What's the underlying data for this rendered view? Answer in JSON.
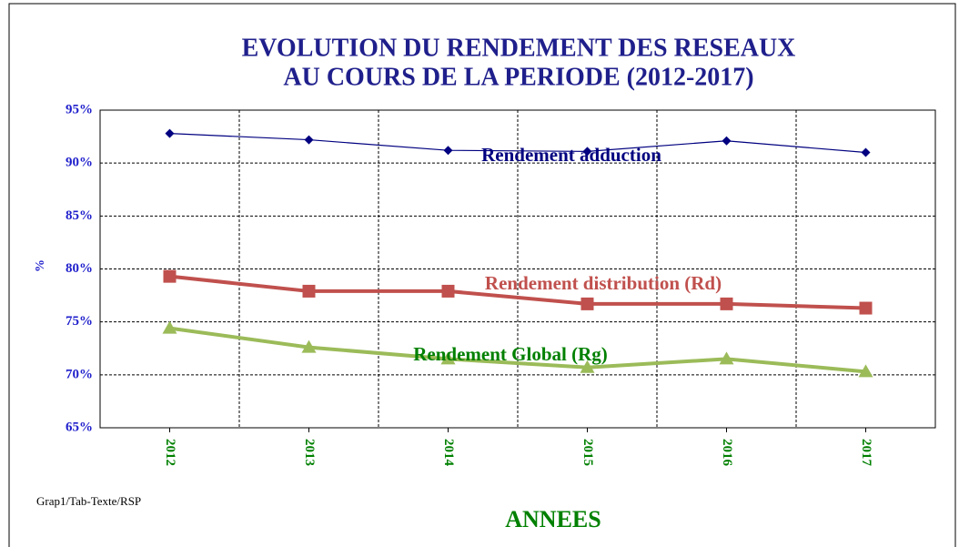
{
  "chart_data": {
    "type": "line",
    "title": "EVOLUTION DU RENDEMENT DES RESEAUX",
    "subtitle": "AU COURS  DE LA PERIODE (2012-2017)",
    "x_label": "ANNEES",
    "y_label": "%",
    "annotation": "Grap1/Tab-Texte/RSP",
    "categories": [
      "2012",
      "2013",
      "2014",
      "2015",
      "2016",
      "2017"
    ],
    "series": [
      {
        "name": "Rendement adduction",
        "color": "#000080",
        "marker": "diamond",
        "values": [
          92.8,
          92.2,
          91.2,
          91.1,
          92.1,
          91.0
        ]
      },
      {
        "name": "Rendement distribution  (Rd)",
        "color": "#c0504d",
        "marker": "square",
        "values": [
          79.3,
          77.9,
          77.9,
          76.7,
          76.7,
          76.3
        ]
      },
      {
        "name": "Rendement Global (Rg)",
        "color": "#9bbb59",
        "marker": "triangle",
        "values": [
          74.4,
          72.6,
          71.5,
          70.7,
          71.5,
          70.3
        ]
      }
    ],
    "ylim": [
      65,
      95
    ],
    "yticks": [
      {
        "value": 65,
        "label": "65%"
      },
      {
        "value": 70,
        "label": "70%"
      },
      {
        "value": 75,
        "label": "75%"
      },
      {
        "value": 80,
        "label": "80%"
      },
      {
        "value": 85,
        "label": "85%"
      },
      {
        "value": 90,
        "label": "90%"
      },
      {
        "value": 95,
        "label": "95%"
      }
    ],
    "grid": true
  }
}
